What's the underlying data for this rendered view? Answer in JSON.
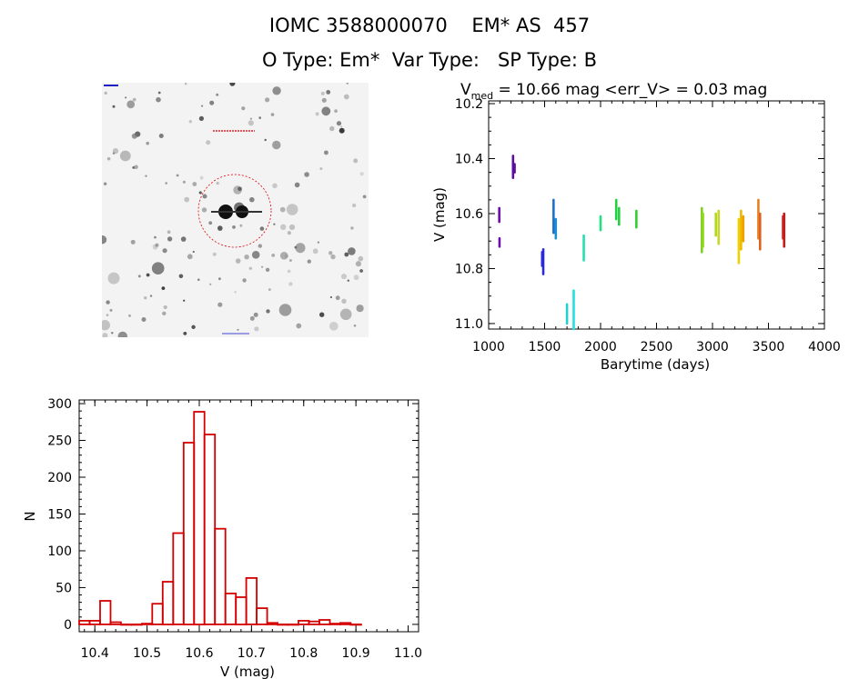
{
  "header": {
    "title_line1": "IOMC 3588000070    EM* AS  457",
    "title_line2": "O Type: Em*  Var Type:   SP Type: B"
  },
  "image_stamp": {
    "description_icon": "star-field-thumbnail"
  },
  "lightcurve": {
    "stat_prefix": "V",
    "stat_subscript": "med",
    "stat_text": " = 10.66 mag <err_V> = 0.03 mag",
    "xlabel": "Barytime (days)",
    "ylabel": "V (mag)",
    "xlim": [
      1000,
      4000
    ],
    "ylim": [
      11.02,
      10.19
    ],
    "xticks": [
      "1000",
      "1500",
      "2000",
      "2500",
      "3000",
      "3500",
      "4000"
    ],
    "yticks": [
      "10.2",
      "10.4",
      "10.6",
      "10.8",
      "11.0"
    ]
  },
  "chart_data": [
    {
      "type": "scatter",
      "title": "Vmed = 10.66 mag <err_V> = 0.03 mag",
      "xlabel": "Barytime (days)",
      "ylabel": "V (mag)",
      "xlim": [
        1000,
        4000
      ],
      "ylim": [
        11.02,
        10.19
      ],
      "segments": [
        {
          "x": 1095,
          "y1": 10.58,
          "y2": 10.63,
          "color": "#6a0dad"
        },
        {
          "x": 1097,
          "y1": 10.69,
          "y2": 10.72,
          "color": "#6a0dad"
        },
        {
          "x": 1218,
          "y1": 10.39,
          "y2": 10.47,
          "color": "#5a0fa0"
        },
        {
          "x": 1232,
          "y1": 10.42,
          "y2": 10.45,
          "color": "#5a0fa0"
        },
        {
          "x": 1478,
          "y1": 10.74,
          "y2": 10.79,
          "color": "#2b2bd6"
        },
        {
          "x": 1488,
          "y1": 10.73,
          "y2": 10.82,
          "color": "#2b2bd6"
        },
        {
          "x": 1580,
          "y1": 10.55,
          "y2": 10.67,
          "color": "#1f6fd0"
        },
        {
          "x": 1600,
          "y1": 10.62,
          "y2": 10.69,
          "color": "#1f8fd0"
        },
        {
          "x": 1700,
          "y1": 10.93,
          "y2": 11.0,
          "color": "#22d0d0"
        },
        {
          "x": 1760,
          "y1": 10.88,
          "y2": 11.02,
          "color": "#22e0e0"
        },
        {
          "x": 1850,
          "y1": 10.68,
          "y2": 10.77,
          "color": "#22e0b0"
        },
        {
          "x": 2000,
          "y1": 10.61,
          "y2": 10.66,
          "color": "#22e080"
        },
        {
          "x": 2140,
          "y1": 10.55,
          "y2": 10.62,
          "color": "#22d040"
        },
        {
          "x": 2165,
          "y1": 10.58,
          "y2": 10.64,
          "color": "#22d040"
        },
        {
          "x": 2320,
          "y1": 10.59,
          "y2": 10.65,
          "color": "#30d030"
        },
        {
          "x": 2905,
          "y1": 10.58,
          "y2": 10.74,
          "color": "#80d020"
        },
        {
          "x": 2915,
          "y1": 10.6,
          "y2": 10.72,
          "color": "#90d820"
        },
        {
          "x": 3030,
          "y1": 10.6,
          "y2": 10.68,
          "color": "#b0d820"
        },
        {
          "x": 3055,
          "y1": 10.59,
          "y2": 10.71,
          "color": "#c8d820"
        },
        {
          "x": 3235,
          "y1": 10.62,
          "y2": 10.78,
          "color": "#f0d000"
        },
        {
          "x": 3255,
          "y1": 10.59,
          "y2": 10.73,
          "color": "#f0b800"
        },
        {
          "x": 3275,
          "y1": 10.61,
          "y2": 10.7,
          "color": "#f0a000"
        },
        {
          "x": 3410,
          "y1": 10.55,
          "y2": 10.69,
          "color": "#e88020"
        },
        {
          "x": 3425,
          "y1": 10.6,
          "y2": 10.73,
          "color": "#e06020"
        },
        {
          "x": 3630,
          "y1": 10.61,
          "y2": 10.69,
          "color": "#e02020"
        },
        {
          "x": 3640,
          "y1": 10.6,
          "y2": 10.72,
          "color": "#d01818"
        }
      ]
    },
    {
      "type": "bar",
      "title": "",
      "xlabel": "V (mag)",
      "ylabel": "N",
      "xlim": [
        10.37,
        11.02
      ],
      "ylim": [
        -10,
        305
      ],
      "xticks": [
        "10.4",
        "10.5",
        "10.6",
        "10.7",
        "10.8",
        "10.9",
        "11.0"
      ],
      "yticks": [
        "0",
        "50",
        "100",
        "150",
        "200",
        "250",
        "300"
      ],
      "bin_width": 0.02,
      "bin_start": 10.38,
      "values": [
        5,
        5,
        32,
        3,
        0,
        0,
        1,
        28,
        58,
        124,
        247,
        289,
        258,
        130,
        42,
        37,
        63,
        22,
        2,
        0,
        0,
        5,
        4,
        6,
        1,
        2,
        0
      ],
      "bar_color": "#d40000"
    }
  ]
}
